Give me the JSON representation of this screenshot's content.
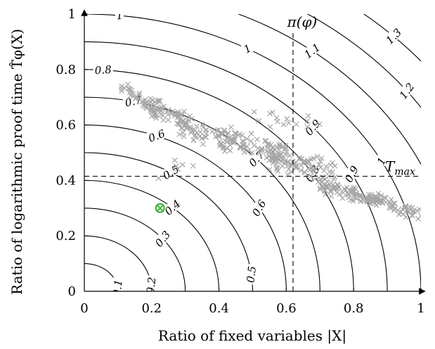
{
  "chart_data": {
    "type": "scatter",
    "xlabel": "Ratio of fixed variables |X|",
    "ylabel": "Ratio of logarithmic proof time T̂φ(X)",
    "xlim": [
      0,
      1
    ],
    "ylim": [
      0,
      1
    ],
    "xticks": [
      "0",
      "0.2",
      "0.4",
      "0.6",
      "0.8",
      "1"
    ],
    "yticks": [
      "0",
      "0.2",
      "0.4",
      "0.6",
      "0.8",
      "1"
    ],
    "grid": false,
    "contours": {
      "radii": [
        0.1,
        0.2,
        0.3,
        0.4,
        0.5,
        0.6,
        0.7,
        0.8,
        0.9,
        1.0,
        1.1,
        1.2,
        1.3
      ],
      "labels": [
        {
          "r": 0.1,
          "text": "0.1",
          "deg": 7
        },
        {
          "r": 0.2,
          "text": "0.2",
          "deg": 6
        },
        {
          "r": 0.3,
          "text": "0.3",
          "deg": 39
        },
        {
          "r": 0.4,
          "text": "0.4",
          "deg": 49
        },
        {
          "r": 0.5,
          "text": "0.5",
          "deg": 59
        },
        {
          "r": 0.6,
          "text": "0.6",
          "deg": 69
        },
        {
          "r": 0.7,
          "text": "0.7",
          "deg": 78
        },
        {
          "r": 0.8,
          "text": "0.8",
          "deg": 86
        },
        {
          "r": 0.9,
          "text": "0.9",
          "deg": 28
        },
        {
          "r": 1.0,
          "text": "1",
          "deg": 84
        },
        {
          "r": 1.1,
          "text": "1.1",
          "deg": 52
        },
        {
          "r": 1.2,
          "text": "1.2",
          "deg": 37
        },
        {
          "r": 1.3,
          "text": "1.3",
          "deg": 45
        },
        {
          "r": 0.5,
          "text": "0.5",
          "deg": 7
        },
        {
          "r": 0.6,
          "text": "0.6",
          "deg": 30
        },
        {
          "r": 0.7,
          "text": "0.7",
          "deg": 43
        },
        {
          "r": 0.8,
          "text": "0.8",
          "deg": 32
        },
        {
          "r": 0.9,
          "text": "0.9",
          "deg": 41
        },
        {
          "r": 1.0,
          "text": "1",
          "deg": 61
        },
        {
          "r": 1.0,
          "text": "1",
          "deg": 28
        }
      ]
    },
    "reference_lines": [
      {
        "orientation": "vertical",
        "x": 0.62,
        "label": "π(φ)"
      },
      {
        "orientation": "horizontal",
        "y": 0.415,
        "label": "T_max"
      }
    ],
    "highlight_point": {
      "x": 0.225,
      "y": 0.3,
      "marker": "circled-x",
      "color": "#22aa22"
    },
    "scatter_clusters": [
      {
        "x0": 0.11,
        "x1": 0.22,
        "y_start": 0.74,
        "y_slope": -0.9,
        "spread": 0.04,
        "count": 45
      },
      {
        "x0": 0.18,
        "x1": 0.32,
        "y_start": 0.68,
        "y_slope": -0.5,
        "spread": 0.045,
        "count": 50
      },
      {
        "x0": 0.28,
        "x1": 0.45,
        "y_start": 0.6,
        "y_slope": -0.35,
        "spread": 0.05,
        "count": 60
      },
      {
        "x0": 0.4,
        "x1": 0.6,
        "y_start": 0.55,
        "y_slope": -0.3,
        "spread": 0.05,
        "count": 80
      },
      {
        "x0": 0.55,
        "x1": 0.75,
        "y_start": 0.49,
        "y_slope": -0.35,
        "spread": 0.055,
        "count": 90
      },
      {
        "x0": 0.7,
        "x1": 0.88,
        "y_start": 0.38,
        "y_slope": -0.3,
        "spread": 0.03,
        "count": 90
      },
      {
        "x0": 0.85,
        "x1": 1.0,
        "y_start": 0.34,
        "y_slope": -0.45,
        "spread": 0.03,
        "count": 55
      },
      {
        "x0": 0.5,
        "x1": 0.7,
        "y_start": 0.63,
        "y_slope": -0.2,
        "spread": 0.04,
        "count": 15
      },
      {
        "x0": 0.22,
        "x1": 0.35,
        "y_start": 0.44,
        "y_slope": 0.1,
        "spread": 0.04,
        "count": 6
      }
    ],
    "colors": {
      "scatter": "#a6a6a6",
      "contour": "#000000",
      "axis": "#000000",
      "highlight": "#22aa22"
    }
  }
}
